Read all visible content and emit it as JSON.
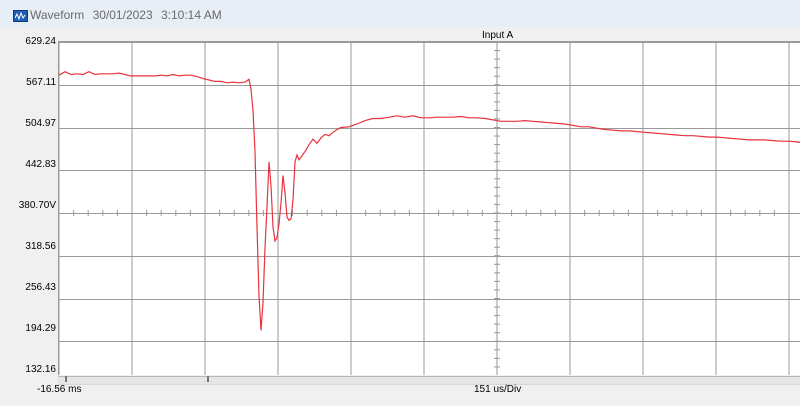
{
  "window": {
    "title": "Waveform",
    "date": "30/01/2023",
    "time": "3:10:14 AM",
    "icon": "waveform-app-icon"
  },
  "plot": {
    "channel_label": "Input A",
    "y_labels": [
      "629.24",
      "567.11",
      "504.97",
      "442.83",
      "380.70V",
      "318.56",
      "256.43",
      "194.29",
      "132.16"
    ],
    "trace_color": "#e8323c",
    "grid_color": "#999999"
  },
  "status": {
    "time_start": "-16.56 ms",
    "time_per_div": "151 us/Div"
  },
  "chart_data": {
    "type": "line",
    "ylim": [
      132.16,
      629.24
    ],
    "series": [
      {
        "values": [
          [
            0,
            581
          ],
          [
            6,
            586
          ],
          [
            12,
            582
          ],
          [
            18,
            583
          ],
          [
            24,
            582
          ],
          [
            30,
            586
          ],
          [
            36,
            582
          ],
          [
            42,
            583
          ],
          [
            48,
            583
          ],
          [
            54,
            583
          ],
          [
            60,
            584
          ],
          [
            66,
            582
          ],
          [
            72,
            580
          ],
          [
            78,
            580
          ],
          [
            84,
            580
          ],
          [
            90,
            580
          ],
          [
            96,
            580
          ],
          [
            102,
            581
          ],
          [
            108,
            580
          ],
          [
            114,
            582
          ],
          [
            120,
            580
          ],
          [
            126,
            581
          ],
          [
            132,
            581
          ],
          [
            138,
            579
          ],
          [
            144,
            576
          ],
          [
            150,
            574
          ],
          [
            156,
            572
          ],
          [
            162,
            572
          ],
          [
            168,
            570
          ],
          [
            174,
            571
          ],
          [
            180,
            570
          ],
          [
            186,
            571
          ],
          [
            190,
            575
          ],
          [
            192,
            560
          ],
          [
            194,
            530
          ],
          [
            196,
            470
          ],
          [
            198,
            360
          ],
          [
            200,
            260
          ],
          [
            202,
            210
          ],
          [
            204,
            250
          ],
          [
            206,
            330
          ],
          [
            208,
            390
          ],
          [
            210,
            455
          ],
          [
            212,
            420
          ],
          [
            214,
            360
          ],
          [
            216,
            340
          ],
          [
            218,
            345
          ],
          [
            220,
            365
          ],
          [
            222,
            395
          ],
          [
            224,
            435
          ],
          [
            226,
            410
          ],
          [
            228,
            375
          ],
          [
            230,
            370
          ],
          [
            232,
            372
          ],
          [
            234,
            400
          ],
          [
            236,
            455
          ],
          [
            238,
            465
          ],
          [
            240,
            458
          ],
          [
            242,
            462
          ],
          [
            246,
            470
          ],
          [
            250,
            480
          ],
          [
            254,
            488
          ],
          [
            258,
            482
          ],
          [
            262,
            490
          ],
          [
            266,
            495
          ],
          [
            270,
            493
          ],
          [
            274,
            498
          ],
          [
            278,
            502
          ],
          [
            282,
            505
          ],
          [
            290,
            506
          ],
          [
            298,
            510
          ],
          [
            306,
            515
          ],
          [
            314,
            518
          ],
          [
            322,
            518
          ],
          [
            330,
            520
          ],
          [
            338,
            522
          ],
          [
            346,
            520
          ],
          [
            354,
            522
          ],
          [
            362,
            519
          ],
          [
            370,
            519
          ],
          [
            378,
            520
          ],
          [
            386,
            520
          ],
          [
            394,
            520
          ],
          [
            402,
            521
          ],
          [
            410,
            519
          ],
          [
            418,
            519
          ],
          [
            426,
            518
          ],
          [
            434,
            516
          ],
          [
            442,
            514
          ],
          [
            450,
            514
          ],
          [
            458,
            514
          ],
          [
            466,
            515
          ],
          [
            474,
            514
          ],
          [
            482,
            513
          ],
          [
            490,
            512
          ],
          [
            498,
            511
          ],
          [
            506,
            510
          ],
          [
            514,
            508
          ],
          [
            522,
            506
          ],
          [
            530,
            506
          ],
          [
            538,
            504
          ],
          [
            546,
            502
          ],
          [
            554,
            501
          ],
          [
            562,
            500
          ],
          [
            570,
            500
          ],
          [
            578,
            499
          ],
          [
            586,
            498
          ],
          [
            594,
            497
          ],
          [
            602,
            496
          ],
          [
            610,
            495
          ],
          [
            618,
            494
          ],
          [
            626,
            493
          ],
          [
            634,
            493
          ],
          [
            642,
            492
          ],
          [
            650,
            491
          ],
          [
            658,
            491
          ],
          [
            666,
            490
          ],
          [
            674,
            489
          ],
          [
            682,
            488
          ],
          [
            690,
            487
          ],
          [
            698,
            487
          ],
          [
            706,
            487
          ],
          [
            714,
            486
          ],
          [
            722,
            485
          ],
          [
            730,
            485
          ],
          [
            738,
            484
          ],
          [
            742,
            483
          ]
        ]
      }
    ]
  }
}
